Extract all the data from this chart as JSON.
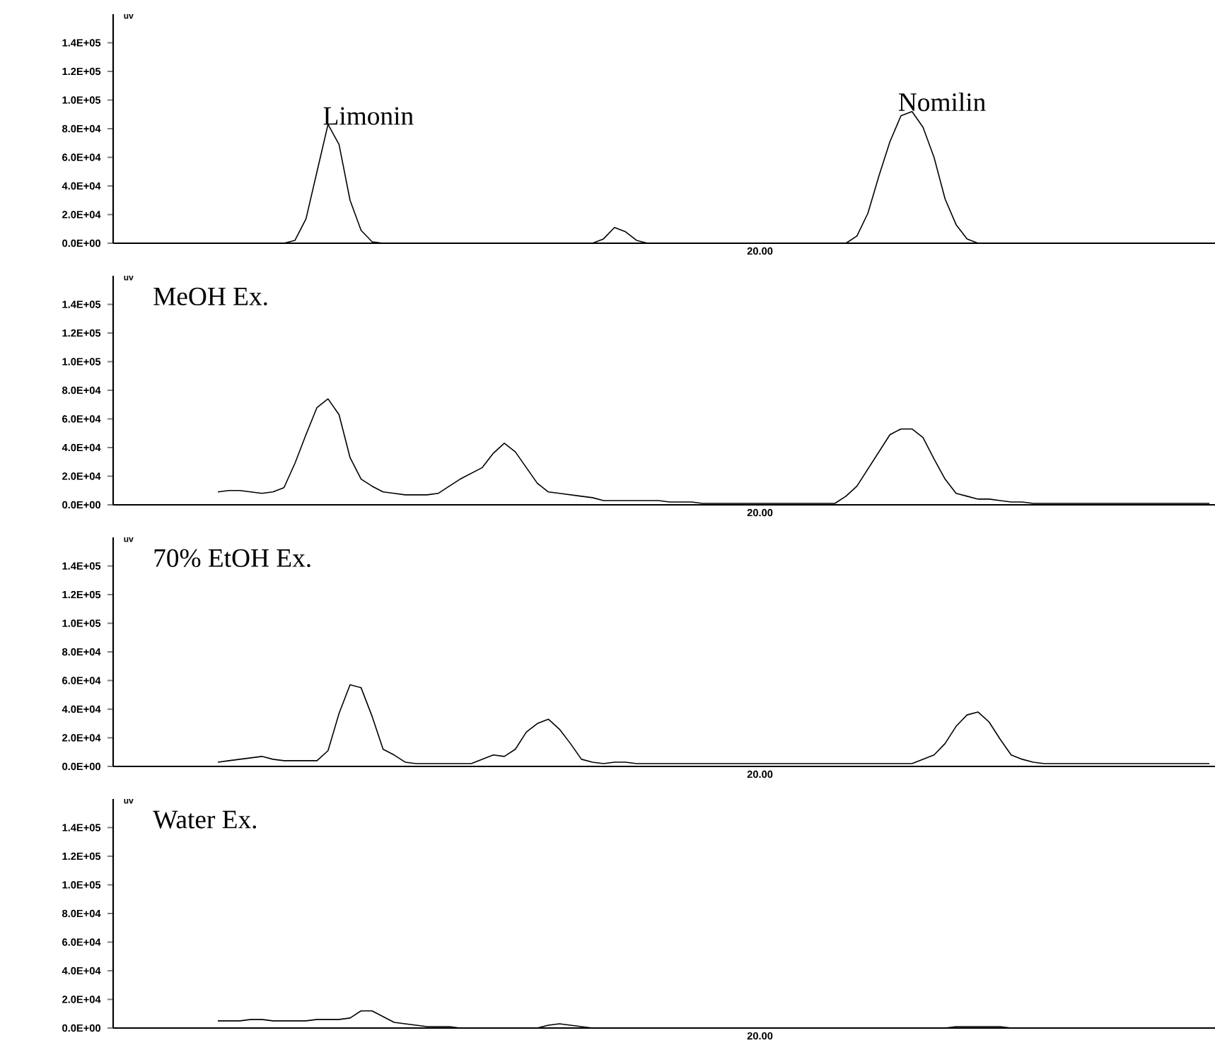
{
  "chart_data": [
    {
      "type": "line",
      "ylabel": "uv",
      "categories": [
        null,
        null,
        null,
        null,
        null,
        null,
        null,
        null,
        null,
        null,
        null,
        null,
        null,
        null,
        null,
        null,
        null,
        null,
        null,
        null,
        null,
        null,
        null,
        null,
        null,
        null,
        null,
        null,
        null,
        null,
        null,
        null,
        null,
        null,
        null,
        null,
        null,
        null,
        null,
        null,
        null,
        null,
        null,
        null,
        null,
        null,
        null,
        null,
        null,
        null,
        null,
        null,
        null,
        null,
        null,
        null,
        null,
        null,
        null,
        null,
        null,
        null,
        null,
        null,
        null,
        null,
        null,
        null,
        null,
        null,
        null,
        null,
        null,
        null,
        null,
        null,
        null,
        null,
        null,
        null,
        null,
        null,
        null,
        null,
        null,
        null,
        null,
        null,
        null,
        null,
        null,
        null,
        null,
        null,
        null,
        null,
        null,
        null,
        null,
        null
      ],
      "series": [
        {
          "color": "#000000",
          "values": [
            null,
            null,
            null,
            null,
            null,
            null,
            null,
            null,
            null,
            0,
            0,
            0,
            0,
            0,
            0,
            0,
            2000,
            17000,
            50000,
            83000,
            69000,
            30000,
            9000,
            1000,
            0,
            0,
            0,
            0,
            0,
            0,
            0,
            0,
            0,
            0,
            0,
            0,
            0,
            0,
            0,
            0,
            0,
            0,
            0,
            0,
            3000,
            11000,
            8000,
            2000,
            0,
            0,
            0,
            0,
            0,
            0,
            0,
            0,
            0,
            0,
            0,
            0,
            0,
            0,
            0,
            0,
            0,
            0,
            0,
            5000,
            21000,
            47000,
            71000,
            89000,
            92000,
            81000,
            60000,
            31000,
            13000,
            3000,
            0,
            0,
            0,
            0,
            0,
            0,
            0,
            0,
            0,
            0,
            0,
            0,
            0,
            0,
            0,
            0,
            0,
            0,
            null,
            null,
            null,
            null
          ]
        }
      ],
      "annotations": [
        "Limonin",
        "Nomilin",
        "20.00"
      ],
      "ylim": [
        0,
        160000
      ],
      "yticks": [
        {
          "value": 0,
          "label": "0.0E+00"
        },
        {
          "value": 20000,
          "label": "2.0E+04"
        },
        {
          "value": 40000,
          "label": "4.0E+04"
        },
        {
          "value": 60000,
          "label": "6.0E+04"
        },
        {
          "value": 80000,
          "label": "8.0E+04"
        },
        {
          "value": 100000,
          "label": "1.0E+05"
        },
        {
          "value": 120000,
          "label": "1.2E+05"
        },
        {
          "value": 140000,
          "label": "1.4E+05"
        }
      ]
    },
    {
      "type": "line",
      "title": "MeOH Ex.",
      "ylabel": "uv",
      "categories": [
        null,
        null,
        null,
        null,
        null,
        null,
        null,
        null,
        null,
        null,
        null,
        null,
        null,
        null,
        null,
        null,
        null,
        null,
        null,
        null,
        null,
        null,
        null,
        null,
        null,
        null,
        null,
        null,
        null,
        null,
        null,
        null,
        null,
        null,
        null,
        null,
        null,
        null,
        null,
        null,
        null,
        null,
        null,
        null,
        null,
        null,
        null,
        null,
        null,
        null,
        null,
        null,
        null,
        null,
        null,
        null,
        null,
        null,
        null,
        null,
        null,
        null,
        null,
        null,
        null,
        null,
        null,
        null,
        null,
        null,
        null,
        null,
        null,
        null,
        null,
        null,
        null,
        null,
        null,
        null,
        null,
        null,
        null,
        null,
        null,
        null,
        null,
        null,
        null,
        null,
        null,
        null,
        null,
        null,
        null,
        null,
        null,
        null,
        null,
        null
      ],
      "series": [
        {
          "color": "#000000",
          "values": [
            null,
            null,
            null,
            null,
            null,
            null,
            null,
            null,
            null,
            9000,
            10000,
            10000,
            9000,
            8000,
            9000,
            12000,
            29000,
            49000,
            68000,
            74000,
            63000,
            33000,
            18000,
            13000,
            9000,
            8000,
            7000,
            7000,
            7000,
            8000,
            13000,
            18000,
            22000,
            26000,
            36000,
            43000,
            37000,
            26000,
            15000,
            9000,
            8000,
            7000,
            6000,
            5000,
            3000,
            3000,
            3000,
            3000,
            3000,
            3000,
            2000,
            2000,
            2000,
            1000,
            1000,
            1000,
            1000,
            1000,
            1000,
            1000,
            1000,
            1000,
            1000,
            1000,
            1000,
            1000,
            6000,
            13000,
            25000,
            37000,
            49000,
            53000,
            53000,
            47000,
            32000,
            18000,
            8000,
            6000,
            4000,
            4000,
            3000,
            2000,
            2000,
            1000,
            1000,
            1000,
            1000,
            1000,
            1000,
            1000,
            1000,
            1000,
            1000,
            1000,
            1000,
            1000,
            1000,
            1000,
            1000,
            1000
          ]
        }
      ],
      "annotations": [
        "20.00"
      ],
      "ylim": [
        0,
        160000
      ],
      "yticks": [
        {
          "value": 0,
          "label": "0.0E+00"
        },
        {
          "value": 20000,
          "label": "2.0E+04"
        },
        {
          "value": 40000,
          "label": "4.0E+04"
        },
        {
          "value": 60000,
          "label": "6.0E+04"
        },
        {
          "value": 80000,
          "label": "8.0E+04"
        },
        {
          "value": 100000,
          "label": "1.0E+05"
        },
        {
          "value": 120000,
          "label": "1.2E+05"
        },
        {
          "value": 140000,
          "label": "1.4E+05"
        }
      ]
    },
    {
      "type": "line",
      "title": "70% EtOH Ex.",
      "ylabel": "uv",
      "categories": [
        null,
        null,
        null,
        null,
        null,
        null,
        null,
        null,
        null,
        null,
        null,
        null,
        null,
        null,
        null,
        null,
        null,
        null,
        null,
        null,
        null,
        null,
        null,
        null,
        null,
        null,
        null,
        null,
        null,
        null,
        null,
        null,
        null,
        null,
        null,
        null,
        null,
        null,
        null,
        null,
        null,
        null,
        null,
        null,
        null,
        null,
        null,
        null,
        null,
        null,
        null,
        null,
        null,
        null,
        null,
        null,
        null,
        null,
        null,
        null,
        null,
        null,
        null,
        null,
        null,
        null,
        null,
        null,
        null,
        null,
        null,
        null,
        null,
        null,
        null,
        null,
        null,
        null,
        null,
        null,
        null,
        null,
        null,
        null,
        null,
        null,
        null,
        null,
        null,
        null,
        null,
        null,
        null,
        null,
        null,
        null,
        null,
        null,
        null,
        null
      ],
      "series": [
        {
          "color": "#000000",
          "values": [
            null,
            null,
            null,
            null,
            null,
            null,
            null,
            null,
            null,
            3000,
            4000,
            5000,
            6000,
            7000,
            5000,
            4000,
            4000,
            4000,
            4000,
            11000,
            37000,
            57000,
            55000,
            35000,
            12000,
            8000,
            3000,
            2000,
            2000,
            2000,
            2000,
            2000,
            2000,
            5000,
            8000,
            7000,
            12000,
            24000,
            30000,
            33000,
            26000,
            16000,
            5000,
            3000,
            2000,
            3000,
            3000,
            2000,
            2000,
            2000,
            2000,
            2000,
            2000,
            2000,
            2000,
            2000,
            2000,
            2000,
            2000,
            2000,
            2000,
            2000,
            2000,
            2000,
            2000,
            2000,
            2000,
            2000,
            2000,
            2000,
            2000,
            2000,
            2000,
            5000,
            8000,
            16000,
            28000,
            36000,
            38000,
            31000,
            19000,
            8000,
            5000,
            3000,
            2000,
            2000,
            2000,
            2000,
            2000,
            2000,
            2000,
            2000,
            2000,
            2000,
            2000,
            2000,
            2000,
            2000,
            2000,
            2000
          ]
        }
      ],
      "annotations": [
        "20.00"
      ],
      "ylim": [
        0,
        160000
      ],
      "yticks": [
        {
          "value": 0,
          "label": "0.0E+00"
        },
        {
          "value": 20000,
          "label": "2.0E+04"
        },
        {
          "value": 40000,
          "label": "4.0E+04"
        },
        {
          "value": 60000,
          "label": "6.0E+04"
        },
        {
          "value": 80000,
          "label": "8.0E+04"
        },
        {
          "value": 100000,
          "label": "1.0E+05"
        },
        {
          "value": 120000,
          "label": "1.2E+05"
        },
        {
          "value": 140000,
          "label": "1.4E+05"
        }
      ]
    },
    {
      "type": "line",
      "title": "Water Ex.",
      "ylabel": "uv",
      "categories": [
        null,
        null,
        null,
        null,
        null,
        null,
        null,
        null,
        null,
        null,
        null,
        null,
        null,
        null,
        null,
        null,
        null,
        null,
        null,
        null,
        null,
        null,
        null,
        null,
        null,
        null,
        null,
        null,
        null,
        null,
        null,
        null,
        null,
        null,
        null,
        null,
        null,
        null,
        null,
        null,
        null,
        null,
        null,
        null,
        null,
        null,
        null,
        null,
        null,
        null,
        null,
        null,
        null,
        null,
        null,
        null,
        null,
        null,
        null,
        null,
        null,
        null,
        null,
        null,
        null,
        null,
        null,
        null,
        null,
        null,
        null,
        null,
        null,
        null,
        null,
        null,
        null,
        null,
        null,
        null,
        null,
        null,
        null,
        null,
        null,
        null,
        null,
        null,
        null,
        null,
        null,
        null,
        null,
        null,
        null,
        null,
        null,
        null,
        null,
        null
      ],
      "series": [
        {
          "color": "#000000",
          "values": [
            null,
            null,
            null,
            null,
            null,
            null,
            null,
            null,
            null,
            5000,
            5000,
            5000,
            6000,
            6000,
            5000,
            5000,
            5000,
            5000,
            6000,
            6000,
            6000,
            7000,
            12000,
            12000,
            8000,
            4000,
            3000,
            2000,
            1000,
            1000,
            1000,
            0,
            0,
            0,
            0,
            0,
            0,
            0,
            0,
            2000,
            3000,
            2000,
            1000,
            0,
            0,
            0,
            0,
            0,
            0,
            0,
            0,
            0,
            0,
            0,
            0,
            0,
            0,
            0,
            0,
            0,
            0,
            0,
            0,
            0,
            0,
            0,
            0,
            0,
            0,
            0,
            0,
            0,
            0,
            0,
            0,
            0,
            1000,
            1000,
            1000,
            1000,
            1000,
            0,
            null,
            null,
            null,
            null,
            null,
            null,
            null,
            null,
            null,
            null,
            null,
            null,
            null,
            null,
            null,
            null,
            null,
            null
          ]
        }
      ],
      "annotations": [
        "20.00"
      ],
      "ylim": [
        0,
        160000
      ],
      "yticks": [
        {
          "value": 0,
          "label": "0.0E+00"
        },
        {
          "value": 20000,
          "label": "2.0E+04"
        },
        {
          "value": 40000,
          "label": "4.0E+04"
        },
        {
          "value": 60000,
          "label": "6.0E+04"
        },
        {
          "value": 80000,
          "label": "8.0E+04"
        },
        {
          "value": 100000,
          "label": "1.0E+05"
        },
        {
          "value": 120000,
          "label": "1.2E+05"
        },
        {
          "value": 140000,
          "label": "1.4E+05"
        }
      ]
    }
  ]
}
